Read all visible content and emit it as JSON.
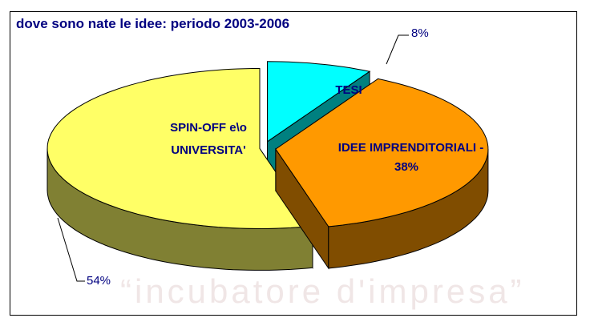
{
  "chart_data": {
    "type": "pie",
    "title": "dove sono nate le idee: periodo 2003-2006",
    "watermark": "“incubatore d'impresa”",
    "categories": [
      "TESI",
      "IDEE IMPRENDITORIALI -",
      "SPIN-OFF e\\o UNIVERSITA'"
    ],
    "values": [
      8,
      38,
      54
    ],
    "value_labels": [
      "8%",
      "38%",
      "54%"
    ],
    "colors": [
      "#00ffff",
      "#ff9900",
      "#ffff66"
    ]
  }
}
